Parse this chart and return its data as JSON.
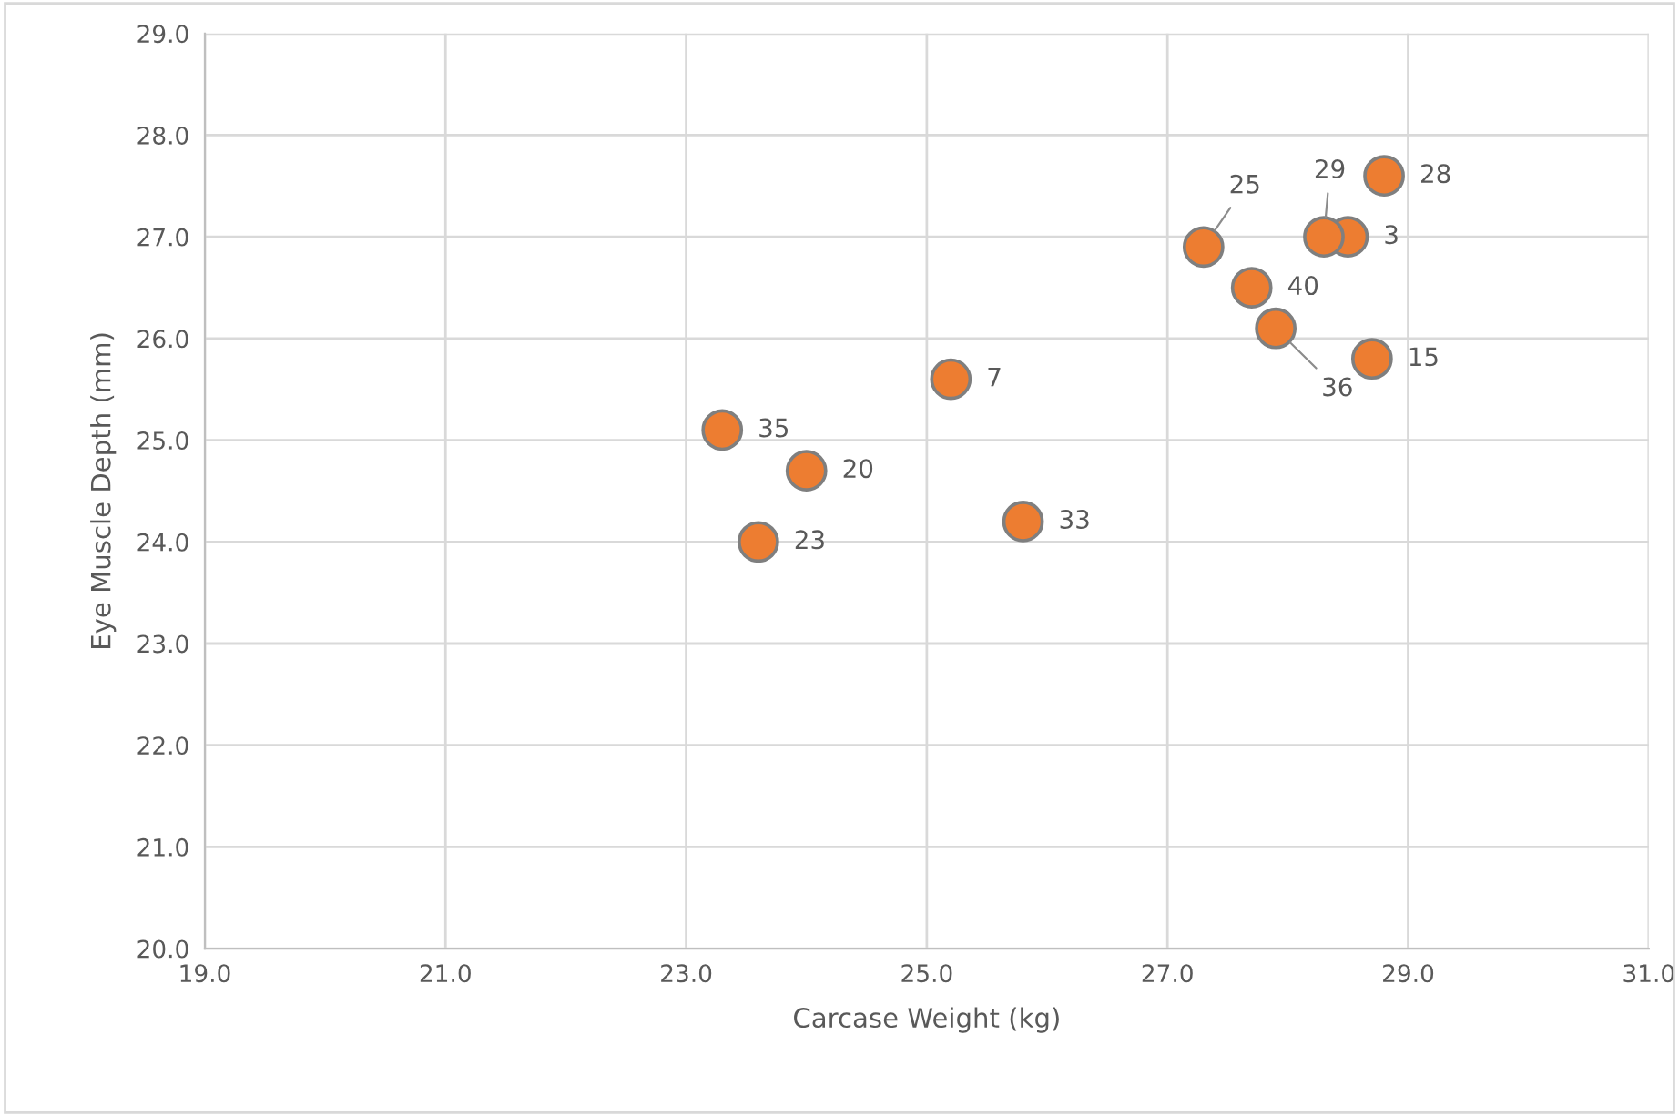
{
  "chart_data": {
    "type": "scatter",
    "xlabel": "Carcase Weight (kg)",
    "ylabel": "Eye Muscle Depth (mm)",
    "x": [
      28.8,
      28.5,
      28.3,
      27.3,
      27.7,
      27.9,
      28.7,
      25.2,
      23.3,
      24.0,
      23.6,
      25.8
    ],
    "series": [
      {
        "color": "#ed7d31",
        "values": [
          27.6,
          27.0,
          27.0,
          26.9,
          26.5,
          26.1,
          25.8,
          25.6,
          25.1,
          24.7,
          24.0,
          24.2
        ]
      }
    ],
    "annotations": [
      {
        "text": "28",
        "x": 28.8,
        "y": 27.6
      },
      {
        "text": "3",
        "x": 28.5,
        "y": 27.0
      },
      {
        "text": "29",
        "x": 28.3,
        "y": 27.0
      },
      {
        "text": "25",
        "x": 27.3,
        "y": 26.9
      },
      {
        "text": "40",
        "x": 27.7,
        "y": 26.5
      },
      {
        "text": "36",
        "x": 27.9,
        "y": 26.1
      },
      {
        "text": "15",
        "x": 28.7,
        "y": 25.8
      },
      {
        "text": "7",
        "x": 25.2,
        "y": 25.6
      },
      {
        "text": "35",
        "x": 23.3,
        "y": 25.1
      },
      {
        "text": "20",
        "x": 24.0,
        "y": 24.7
      },
      {
        "text": "23",
        "x": 23.6,
        "y": 24.0
      },
      {
        "text": "33",
        "x": 25.8,
        "y": 24.2
      }
    ],
    "xlim": [
      19.0,
      31.0
    ],
    "xticks": [
      {
        "value": 19,
        "label": "19.0"
      },
      {
        "value": 21,
        "label": "21.0"
      },
      {
        "value": 23,
        "label": "23.0"
      },
      {
        "value": 25,
        "label": "25.0"
      },
      {
        "value": 27,
        "label": "27.0"
      },
      {
        "value": 29,
        "label": "29.0"
      },
      {
        "value": 31,
        "label": "31.0"
      }
    ],
    "ylim": [
      20.0,
      29.0
    ],
    "yticks": [
      {
        "value": 20,
        "label": "20.0"
      },
      {
        "value": 21,
        "label": "21.0"
      },
      {
        "value": 22,
        "label": "22.0"
      },
      {
        "value": 23,
        "label": "23.0"
      },
      {
        "value": 24,
        "label": "24.0"
      },
      {
        "value": 25,
        "label": "25.0"
      },
      {
        "value": 26,
        "label": "26.0"
      },
      {
        "value": 27,
        "label": "27.0"
      },
      {
        "value": 28,
        "label": "28.0"
      },
      {
        "value": 29,
        "label": "29.0"
      }
    ],
    "grid": true,
    "marker": "circle"
  }
}
